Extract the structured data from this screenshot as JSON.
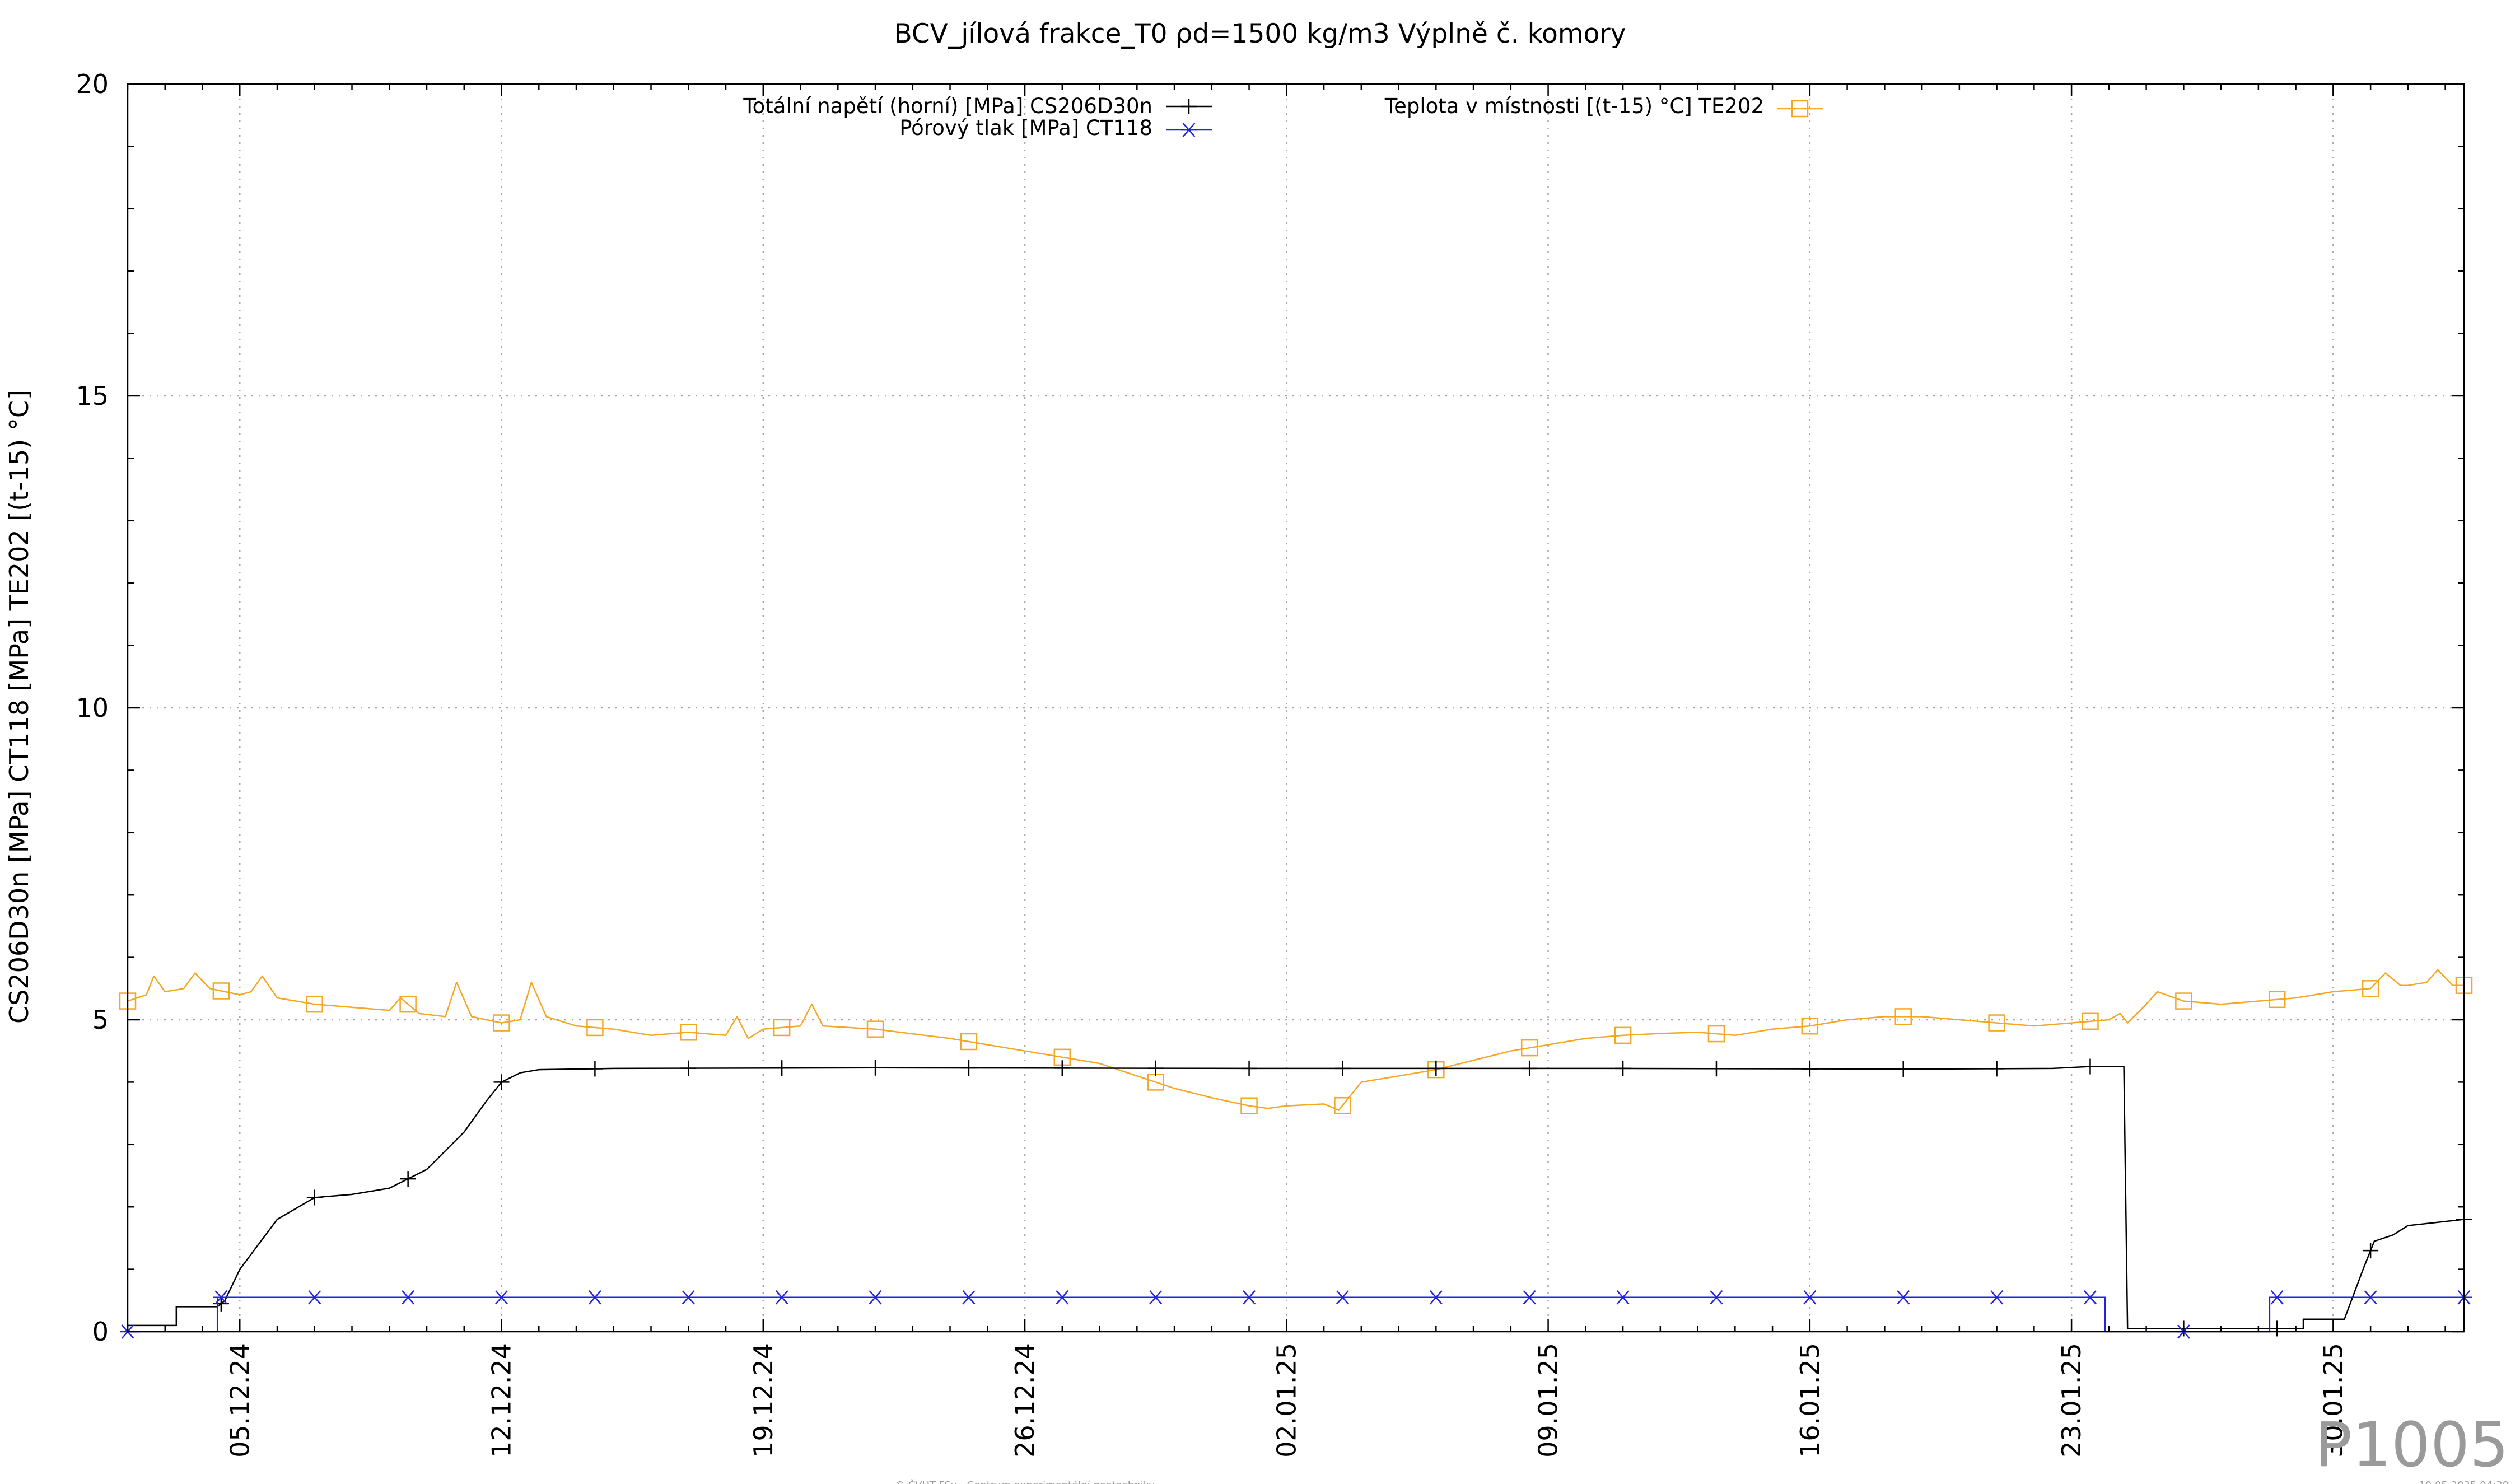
{
  "chart_data": {
    "type": "line",
    "title": "BCV_jílová frakce_T0 ρd=1500 kg/m3 Výplně č. komory",
    "xlabel": "",
    "ylabel": "CS206D30n [MPa] CT118 [MPa] TE202 [(t-15) °C]",
    "ylim": [
      0,
      20
    ],
    "xlim": [
      0,
      62.5
    ],
    "x_unit": "days, starting 02.12.24",
    "y_ticks": [
      {
        "value": 0,
        "label": "0"
      },
      {
        "value": 5,
        "label": "5"
      },
      {
        "value": 10,
        "label": "10"
      },
      {
        "value": 15,
        "label": "15"
      },
      {
        "value": 20,
        "label": "20"
      }
    ],
    "x_ticks": [
      {
        "value": 3,
        "label": "05.12.24"
      },
      {
        "value": 10,
        "label": "12.12.24"
      },
      {
        "value": 17,
        "label": "19.12.24"
      },
      {
        "value": 24,
        "label": "26.12.24"
      },
      {
        "value": 31,
        "label": "02.01.25"
      },
      {
        "value": 38,
        "label": "09.01.25"
      },
      {
        "value": 45,
        "label": "16.01.25"
      },
      {
        "value": 52,
        "label": "23.01.25"
      },
      {
        "value": 59,
        "label": "30.01.25"
      }
    ],
    "grid": true,
    "legend_position": "top",
    "series": [
      {
        "name": "Totální napětí (horní) [MPa] CS206D30n",
        "color": "#000000",
        "marker": "plus-icon",
        "points": [
          [
            0,
            0.1
          ],
          [
            1.3,
            0.1
          ],
          [
            1.3,
            0.4
          ],
          [
            2.4,
            0.4
          ],
          [
            2.6,
            0.5
          ],
          [
            3,
            1.0
          ],
          [
            4,
            1.8
          ],
          [
            5,
            2.15
          ],
          [
            6,
            2.2
          ],
          [
            7,
            2.3
          ],
          [
            8,
            2.6
          ],
          [
            9,
            3.2
          ],
          [
            9.6,
            3.7
          ],
          [
            10,
            4.0
          ],
          [
            10.5,
            4.15
          ],
          [
            11,
            4.2
          ],
          [
            13,
            4.22
          ],
          [
            20,
            4.23
          ],
          [
            30,
            4.22
          ],
          [
            40,
            4.22
          ],
          [
            48,
            4.21
          ],
          [
            51.5,
            4.22
          ],
          [
            52.5,
            4.25
          ],
          [
            53.4,
            4.25
          ],
          [
            53.5,
            0.05
          ],
          [
            58.2,
            0.05
          ],
          [
            58.2,
            0.2
          ],
          [
            59.3,
            0.2
          ],
          [
            59.8,
            1.0
          ],
          [
            60.1,
            1.45
          ],
          [
            60.6,
            1.55
          ],
          [
            61,
            1.7
          ],
          [
            62.5,
            1.8
          ]
        ],
        "markers_x": [
          2.5,
          5,
          7.5,
          10,
          12.5,
          15,
          17.5,
          20,
          22.5,
          25,
          27.5,
          30,
          32.5,
          35,
          37.5,
          40,
          42.5,
          45,
          47.5,
          50,
          52.5,
          55,
          57.5,
          60,
          62.5
        ]
      },
      {
        "name": "Pórový tlak [MPa] CT118",
        "color": "#2222e0",
        "marker": "asterisk-icon",
        "points": [
          [
            0,
            0
          ],
          [
            2.4,
            0
          ],
          [
            2.4,
            0.55
          ],
          [
            10,
            0.55
          ],
          [
            30,
            0.55
          ],
          [
            52.9,
            0.55
          ],
          [
            52.9,
            0
          ],
          [
            57.3,
            0
          ],
          [
            57.3,
            0.55
          ],
          [
            62.5,
            0.55
          ]
        ],
        "markers_x": [
          0,
          2.5,
          5,
          7.5,
          10,
          12.5,
          15,
          17.5,
          20,
          22.5,
          25,
          27.5,
          30,
          32.5,
          35,
          37.5,
          40,
          42.5,
          45,
          47.5,
          50,
          52.5,
          55,
          57.5,
          60,
          62.5
        ]
      },
      {
        "name": "Teplota v místnosti [(t-15) °C] TE202",
        "color": "#f5a623",
        "marker": "square-icon",
        "points": [
          [
            0,
            5.3
          ],
          [
            0.5,
            5.4
          ],
          [
            0.7,
            5.7
          ],
          [
            1,
            5.45
          ],
          [
            1.5,
            5.5
          ],
          [
            1.8,
            5.75
          ],
          [
            2.2,
            5.5
          ],
          [
            3,
            5.4
          ],
          [
            3.3,
            5.45
          ],
          [
            3.6,
            5.7
          ],
          [
            4,
            5.35
          ],
          [
            5,
            5.25
          ],
          [
            7,
            5.15
          ],
          [
            7.3,
            5.35
          ],
          [
            7.8,
            5.1
          ],
          [
            8.5,
            5.05
          ],
          [
            8.8,
            5.6
          ],
          [
            9.2,
            5.05
          ],
          [
            10,
            4.95
          ],
          [
            10.5,
            5.0
          ],
          [
            10.8,
            5.6
          ],
          [
            11.2,
            5.05
          ],
          [
            12,
            4.9
          ],
          [
            13,
            4.85
          ],
          [
            14,
            4.75
          ],
          [
            15,
            4.8
          ],
          [
            16,
            4.75
          ],
          [
            16.3,
            5.05
          ],
          [
            16.6,
            4.7
          ],
          [
            17,
            4.85
          ],
          [
            18,
            4.9
          ],
          [
            18.3,
            5.25
          ],
          [
            18.6,
            4.9
          ],
          [
            20,
            4.85
          ],
          [
            22,
            4.7
          ],
          [
            24,
            4.5
          ],
          [
            25,
            4.4
          ],
          [
            26,
            4.3
          ],
          [
            27,
            4.1
          ],
          [
            28,
            3.9
          ],
          [
            29,
            3.75
          ],
          [
            30,
            3.62
          ],
          [
            30.5,
            3.58
          ],
          [
            31,
            3.62
          ],
          [
            32,
            3.65
          ],
          [
            32.4,
            3.55
          ],
          [
            33,
            4.0
          ],
          [
            34,
            4.1
          ],
          [
            35,
            4.2
          ],
          [
            36,
            4.35
          ],
          [
            37,
            4.5
          ],
          [
            38,
            4.6
          ],
          [
            39,
            4.7
          ],
          [
            40,
            4.75
          ],
          [
            41,
            4.78
          ],
          [
            42,
            4.8
          ],
          [
            43,
            4.75
          ],
          [
            44,
            4.85
          ],
          [
            45,
            4.9
          ],
          [
            46,
            5.0
          ],
          [
            47,
            5.05
          ],
          [
            48,
            5.05
          ],
          [
            49,
            5.0
          ],
          [
            50,
            4.95
          ],
          [
            51,
            4.9
          ],
          [
            52,
            4.95
          ],
          [
            53,
            5.0
          ],
          [
            53.3,
            5.1
          ],
          [
            53.5,
            4.95
          ],
          [
            54,
            5.25
          ],
          [
            54.3,
            5.45
          ],
          [
            55,
            5.3
          ],
          [
            56,
            5.25
          ],
          [
            57,
            5.3
          ],
          [
            58,
            5.35
          ],
          [
            59,
            5.45
          ],
          [
            60,
            5.5
          ],
          [
            60.4,
            5.75
          ],
          [
            60.8,
            5.55
          ],
          [
            61,
            5.55
          ],
          [
            61.5,
            5.6
          ],
          [
            61.8,
            5.8
          ],
          [
            62.2,
            5.55
          ],
          [
            62.5,
            5.55
          ]
        ],
        "markers_x": [
          0,
          2.5,
          5,
          7.5,
          10,
          12.5,
          15,
          17.5,
          20,
          22.5,
          25,
          27.5,
          30,
          32.5,
          35,
          37.5,
          40,
          42.5,
          45,
          47.5,
          50,
          52.5,
          55,
          57.5,
          60,
          62.5
        ]
      }
    ]
  },
  "page_id": "P1005",
  "footer": {
    "credit": "© ČVUT FSv - Centrum experimentální geotechniky",
    "timestamp": "10.05.2025 04:30"
  }
}
